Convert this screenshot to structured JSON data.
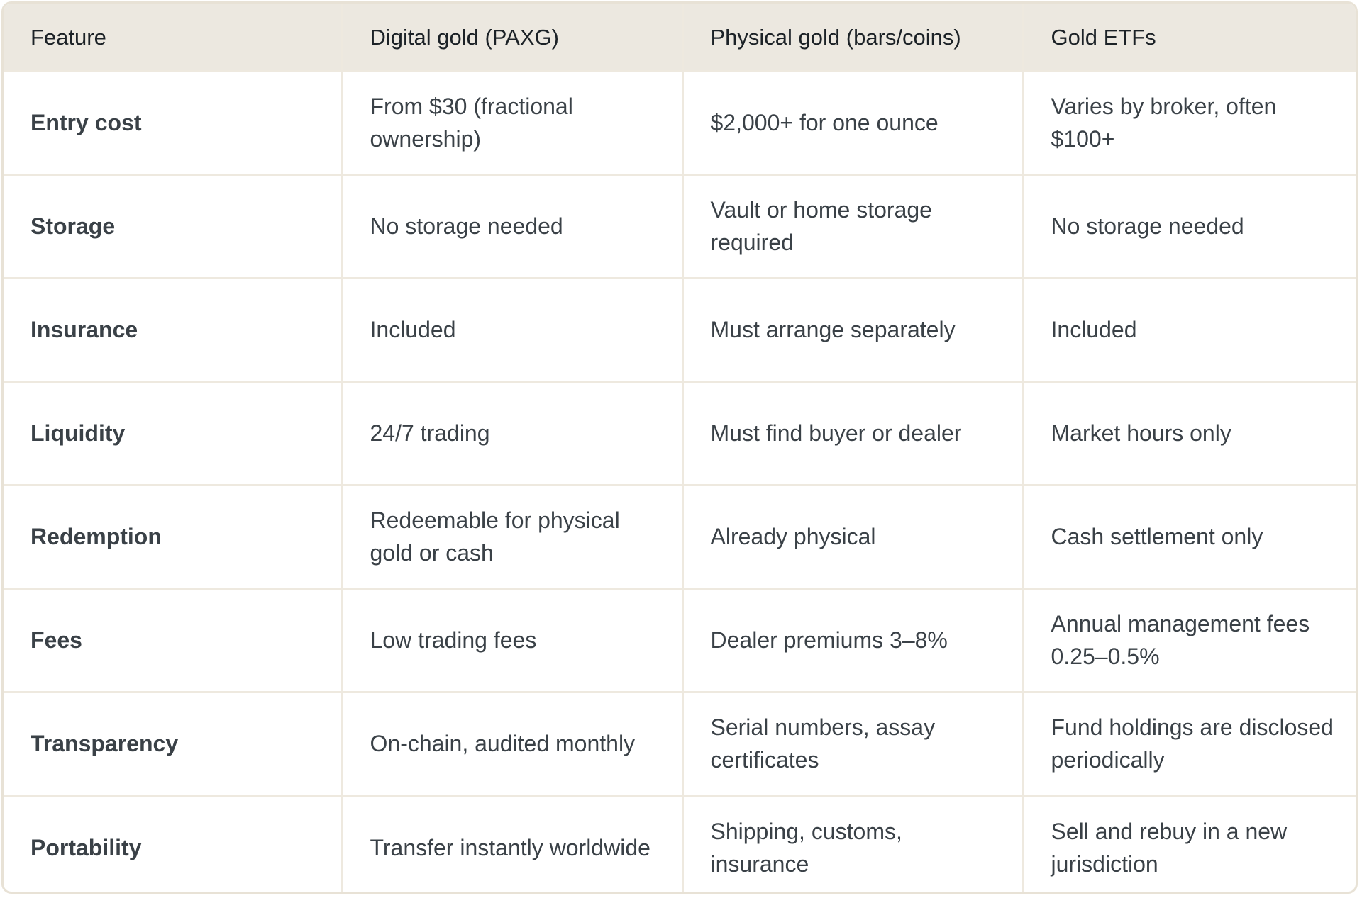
{
  "headers": [
    "Feature",
    "Digital gold (PAXG)",
    "Physical gold (bars/coins)",
    "Gold ETFs"
  ],
  "rows": [
    {
      "feature": "Entry cost",
      "paxg": "From $30 (fractional ownership)",
      "physical": "$2,000+ for one ounce",
      "etf": "Varies by broker, often $100+"
    },
    {
      "feature": "Storage",
      "paxg": "No storage needed",
      "physical": "Vault or home storage required",
      "etf": "No storage needed"
    },
    {
      "feature": "Insurance",
      "paxg": "Included",
      "physical": "Must arrange separately",
      "etf": "Included"
    },
    {
      "feature": "Liquidity",
      "paxg": "24/7 trading",
      "physical": "Must find buyer or dealer",
      "etf": "Market hours only"
    },
    {
      "feature": "Redemption",
      "paxg": "Redeemable for physical gold or cash",
      "physical": "Already physical",
      "etf": "Cash settlement only"
    },
    {
      "feature": "Fees",
      "paxg": "Low trading fees",
      "physical": "Dealer premiums 3–8%",
      "etf": "Annual management fees 0.25–0.5%"
    },
    {
      "feature": "Transparency",
      "paxg": "On-chain, audited monthly",
      "physical": "Serial numbers, assay certificates",
      "etf": "Fund holdings are disclosed periodically"
    },
    {
      "feature": "Portability",
      "paxg": "Transfer instantly worldwide",
      "physical": "Shipping, customs, insurance",
      "etf": "Sell and rebuy in a new jurisdiction"
    }
  ],
  "colors": {
    "header_background": "#ece8e0",
    "border": "#e8e2d6",
    "text": "#3a4147"
  }
}
